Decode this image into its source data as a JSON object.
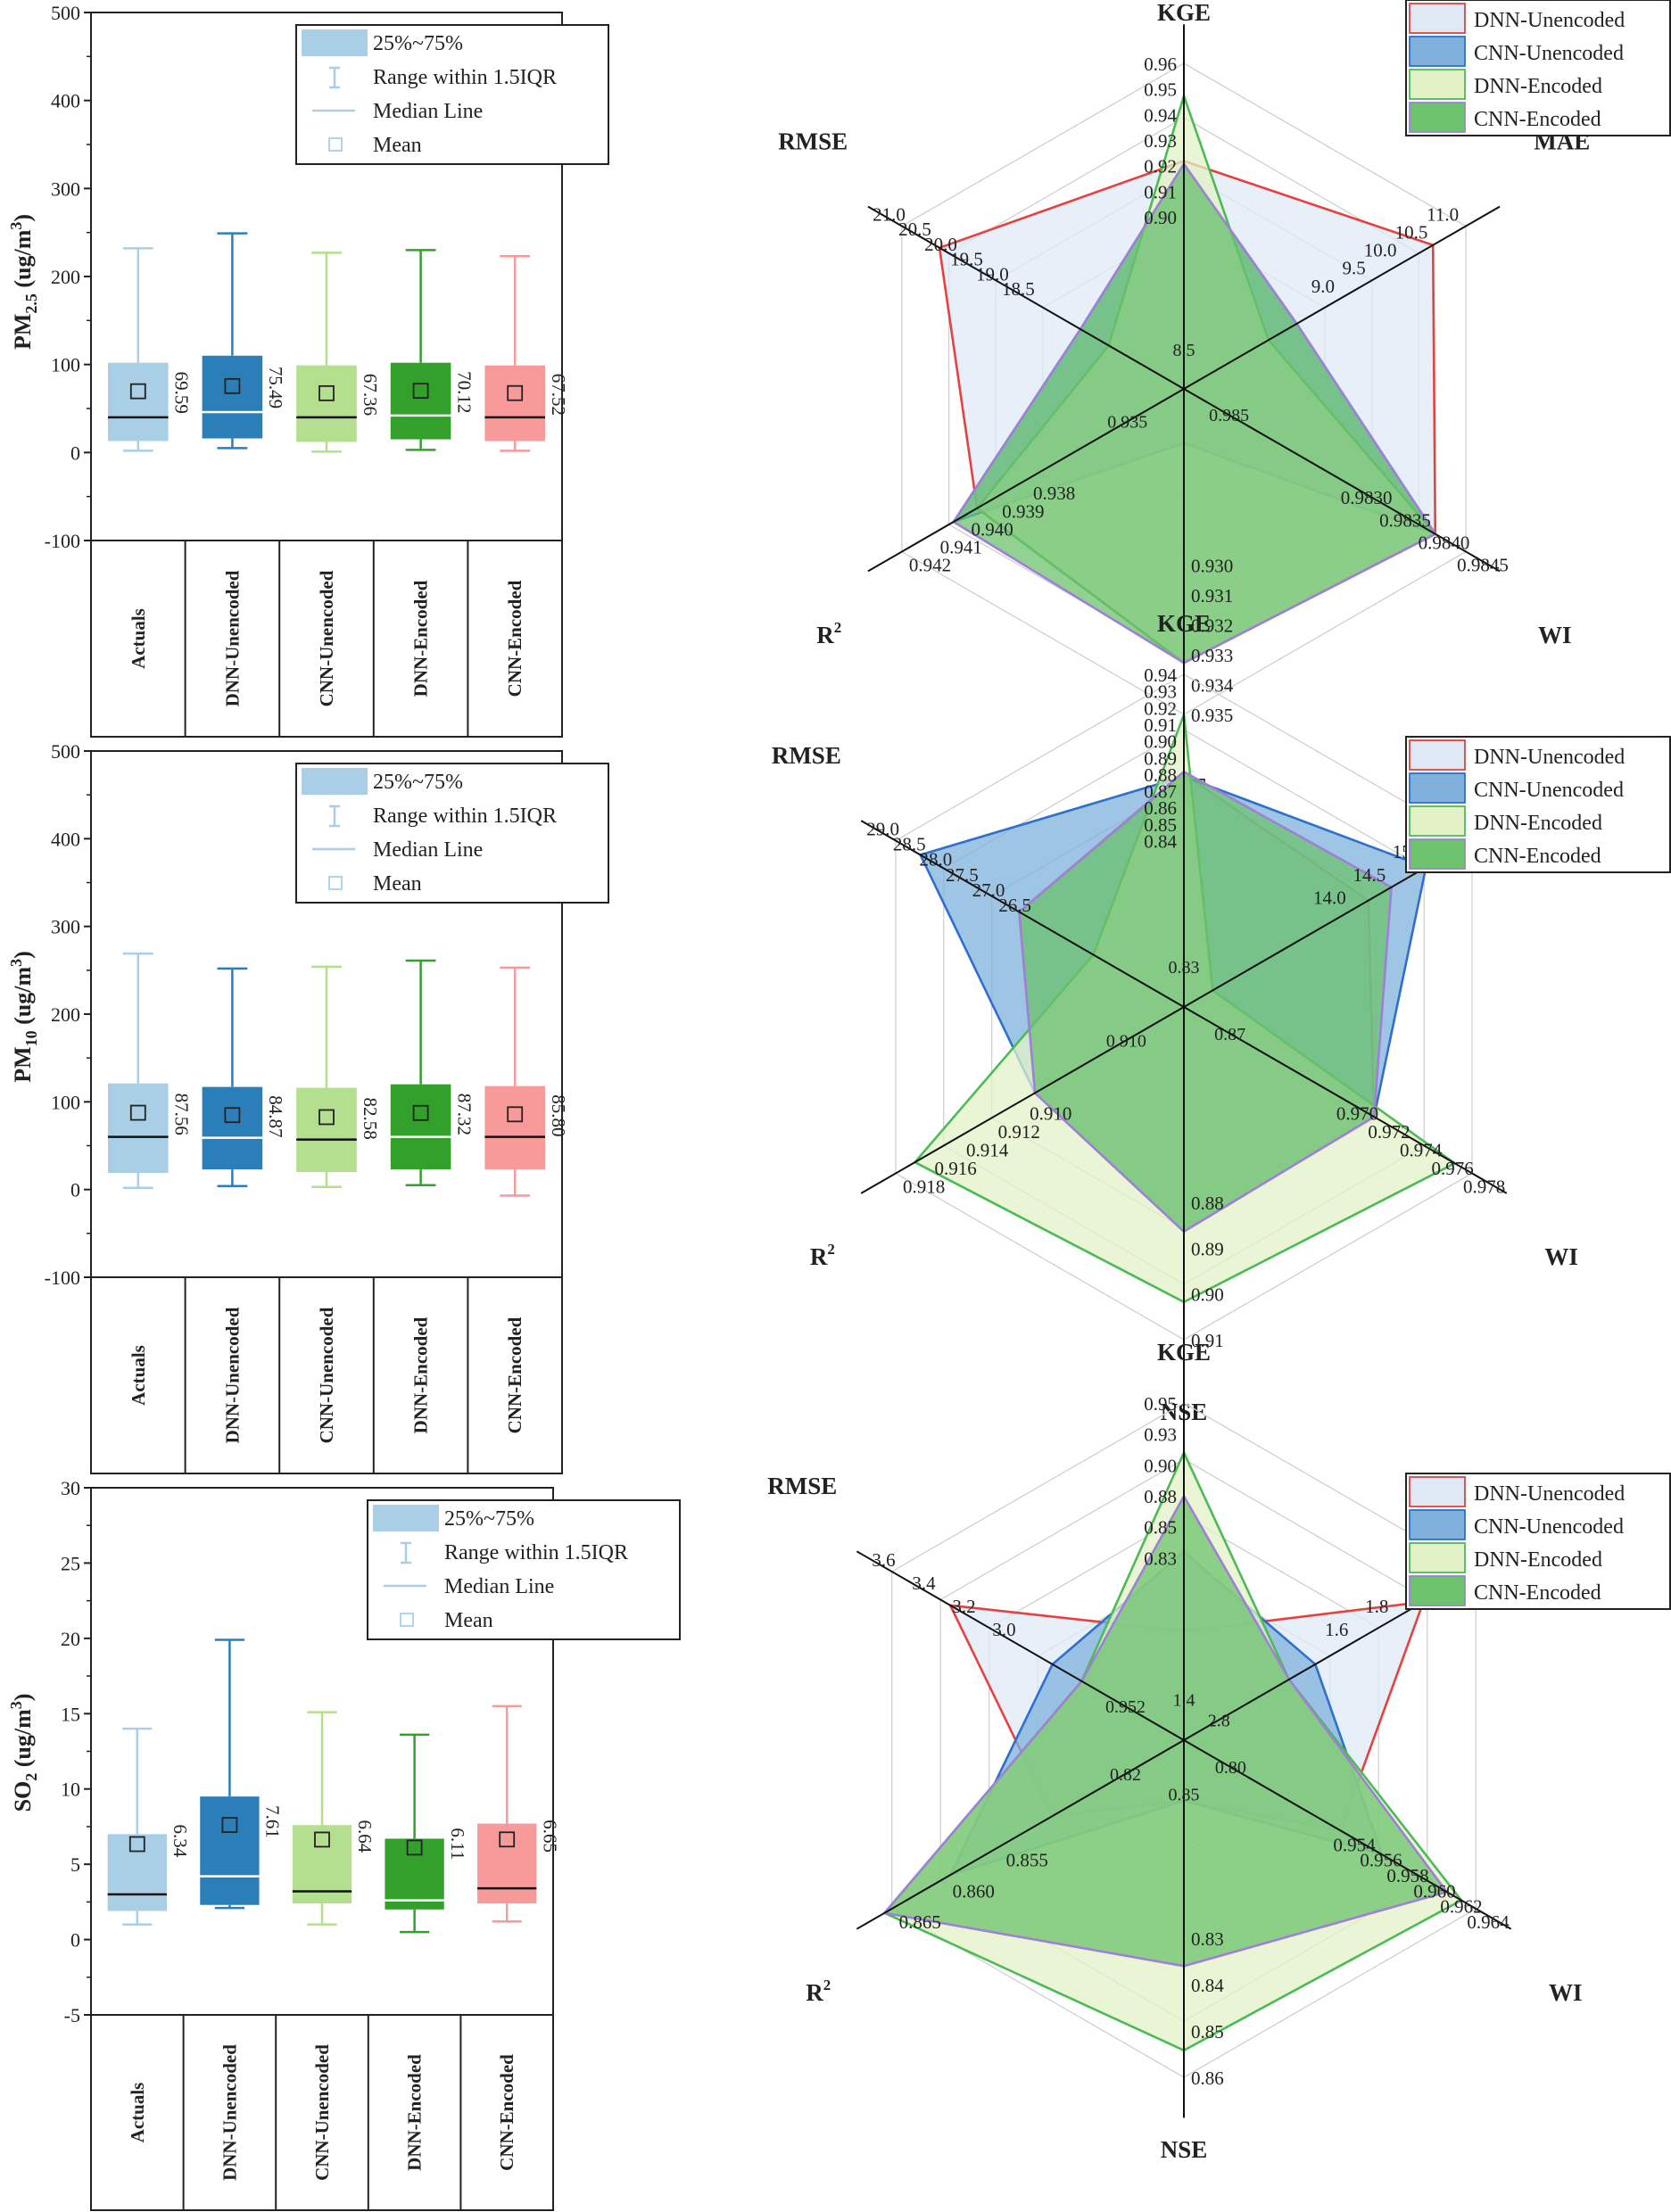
{
  "chart_data": [
    {
      "type": "box",
      "id": "pm25",
      "ylabel": "PM_{2.5} (ug/m^{3})",
      "ylabel_main": "PM",
      "ylabel_sub": "2.5",
      "ylabel_unit": " (ug/m",
      "ylabel_sup": "3",
      "ylabel_close": ")",
      "ylim": [
        -100,
        500
      ],
      "yticks": [
        -100,
        0,
        100,
        200,
        300,
        400,
        500
      ],
      "ytick_labels": [
        "-100",
        "0",
        "100",
        "200",
        "300",
        "400",
        "500"
      ],
      "legend": [
        "25%~75%",
        "Range within 1.5IQR",
        "Median Line",
        "Mean"
      ],
      "categories": [
        "Actuals",
        "DNN-Unencoded",
        "CNN-Unencoded",
        "DNN-Encoded",
        "CNN-Encoded"
      ],
      "boxes": [
        {
          "min": 2,
          "q1": 13,
          "median": 40,
          "q3": 102,
          "max": 232,
          "mean": 69.59,
          "mean_label": "69.59",
          "color": "#a9cfe6"
        },
        {
          "min": 5,
          "q1": 16,
          "median": 46,
          "q3": 110,
          "max": 249,
          "mean": 75.49,
          "mean_label": "75.49",
          "color": "#2b7fb8"
        },
        {
          "min": 1,
          "q1": 12,
          "median": 40,
          "q3": 99,
          "max": 227,
          "mean": 67.36,
          "mean_label": "67.36",
          "color": "#b3df8e"
        },
        {
          "min": 3,
          "q1": 15,
          "median": 42,
          "q3": 102,
          "max": 230,
          "mean": 70.12,
          "mean_label": "70.12",
          "color": "#33a02c"
        },
        {
          "min": 2,
          "q1": 13,
          "median": 40,
          "q3": 99,
          "max": 223,
          "mean": 67.52,
          "mean_label": "67.52",
          "color": "#f89a99"
        }
      ]
    },
    {
      "type": "box",
      "id": "pm10",
      "ylabel": "PM_{10} (ug/m^{3})",
      "ylabel_main": "PM",
      "ylabel_sub": "10",
      "ylabel_unit": " (ug/m",
      "ylabel_sup": "3",
      "ylabel_close": ")",
      "ylim": [
        -100,
        500
      ],
      "yticks": [
        -100,
        0,
        100,
        200,
        300,
        400,
        500
      ],
      "ytick_labels": [
        "-100",
        "0",
        "100",
        "200",
        "300",
        "400",
        "500"
      ],
      "legend": [
        "25%~75%",
        "Range within 1.5IQR",
        "Median Line",
        "Mean"
      ],
      "categories": [
        "Actuals",
        "DNN-Unencoded",
        "CNN-Unencoded",
        "DNN-Encoded",
        "CNN-Encoded"
      ],
      "boxes": [
        {
          "min": 2,
          "q1": 19,
          "median": 60,
          "q3": 121,
          "max": 269,
          "mean": 87.56,
          "mean_label": "87.56",
          "color": "#a9cfe6"
        },
        {
          "min": 4,
          "q1": 23,
          "median": 59,
          "q3": 117,
          "max": 252,
          "mean": 84.87,
          "mean_label": "84.87",
          "color": "#2b7fb8"
        },
        {
          "min": 3,
          "q1": 20,
          "median": 57,
          "q3": 116,
          "max": 254,
          "mean": 82.58,
          "mean_label": "82.58",
          "color": "#b3df8e"
        },
        {
          "min": 5,
          "q1": 23,
          "median": 60,
          "q3": 120,
          "max": 261,
          "mean": 87.32,
          "mean_label": "87.32",
          "color": "#33a02c"
        },
        {
          "min": -7,
          "q1": 23,
          "median": 60,
          "q3": 118,
          "max": 253,
          "mean": 85.8,
          "mean_label": "85.80",
          "color": "#f89a99"
        }
      ]
    },
    {
      "type": "box",
      "id": "so2",
      "ylabel": "SO_{2} (ug/m^{3})",
      "ylabel_main": "SO",
      "ylabel_sub": "2",
      "ylabel_unit": " (ug/m",
      "ylabel_sup": "3",
      "ylabel_close": ")",
      "ylim": [
        -5,
        30
      ],
      "yticks": [
        -5,
        0,
        5,
        10,
        15,
        20,
        25,
        30
      ],
      "ytick_labels": [
        "-5",
        "0",
        "5",
        "10",
        "15",
        "20",
        "25",
        "30"
      ],
      "legend": [
        "25%~75%",
        "Range within 1.5IQR",
        "Median Line",
        "Mean"
      ],
      "categories": [
        "Actuals",
        "DNN-Unencoded",
        "CNN-Unencoded",
        "DNN-Encoded",
        "CNN-Encoded"
      ],
      "boxes": [
        {
          "min": 1.0,
          "q1": 1.9,
          "median": 3.0,
          "q3": 7.0,
          "max": 14.0,
          "mean": 6.34,
          "mean_label": "6.34",
          "color": "#a9cfe6"
        },
        {
          "min": 2.1,
          "q1": 2.3,
          "median": 4.2,
          "q3": 9.5,
          "max": 19.9,
          "mean": 7.61,
          "mean_label": "7.61",
          "color": "#2b7fb8"
        },
        {
          "min": 1.0,
          "q1": 2.4,
          "median": 3.2,
          "q3": 7.6,
          "max": 15.1,
          "mean": 6.64,
          "mean_label": "6.64",
          "color": "#b3df8e"
        },
        {
          "min": 0.5,
          "q1": 2.0,
          "median": 2.6,
          "q3": 6.7,
          "max": 13.6,
          "mean": 6.11,
          "mean_label": "6.11",
          "color": "#33a02c"
        },
        {
          "min": 1.2,
          "q1": 2.4,
          "median": 3.4,
          "q3": 7.7,
          "max": 15.5,
          "mean": 6.65,
          "mean_label": "6.65",
          "color": "#f89a99"
        }
      ]
    },
    {
      "type": "radar",
      "id": "radar-pm25",
      "axes": [
        "KGE",
        "MAE",
        "WI",
        "NSE",
        "R2",
        "RMSE"
      ],
      "axis_titles": [
        {
          "text": "KGE",
          "sup": ""
        },
        {
          "text": "MAE",
          "sup": ""
        },
        {
          "text": "WI",
          "sup": ""
        },
        {
          "text": "NSE",
          "sup": ""
        },
        {
          "text": "R",
          "sup": "2"
        },
        {
          "text": "RMSE",
          "sup": ""
        }
      ],
      "ranges": [
        [
          0.85,
          0.96
        ],
        [
          8.0,
          11.0
        ],
        [
          0.981,
          0.9845
        ],
        [
          0.929,
          0.935
        ],
        [
          0.936,
          0.942
        ],
        [
          18.0,
          21.0
        ]
      ],
      "tick_labels": [
        [
          "0.90",
          "0.91",
          "0.92",
          "0.93",
          "0.94",
          "0.95",
          "0.96"
        ],
        [
          "9.0",
          "9.5",
          "10.0",
          "10.5",
          "11.0"
        ],
        [
          "0.9830",
          "0.9835",
          "0.9840",
          "0.9845"
        ],
        [
          "0.930",
          "0.931",
          "0.932",
          "0.933",
          "0.934",
          "0.935"
        ],
        [
          "0.938",
          "0.939",
          "0.940",
          "0.941",
          "0.942"
        ],
        [
          "18.5",
          "19.0",
          "19.5",
          "20.0",
          "20.5",
          "21.0"
        ]
      ],
      "inner_labels": [
        "8.5",
        "0.985",
        "0.935"
      ],
      "legend": [
        "DNN-Unencoded",
        "CNN-Unencoded",
        "DNN-Encoded",
        "CNN-Encoded"
      ],
      "series": [
        {
          "name": "DNN-Unencoded",
          "values": [
            0.927,
            10.65,
            0.98412,
            0.93405,
            0.9404,
            20.6
          ],
          "fill": "#dfe9f6",
          "stroke": "#e8403f"
        },
        {
          "name": "CNN-Unencoded",
          "values": [
            0.926,
            9.2,
            0.98412,
            0.93,
            0.9409,
            19.1
          ],
          "fill": "#7fb1dc",
          "stroke": "#2f6fcd"
        },
        {
          "name": "DNN-Encoded",
          "values": [
            0.949,
            8.9,
            0.98412,
            0.93405,
            0.9404,
            18.8
          ],
          "fill": "#e2f1c6",
          "stroke": "#4cbb55"
        },
        {
          "name": "CNN-Encoded",
          "values": [
            0.926,
            9.2,
            0.98412,
            0.93405,
            0.9409,
            19.1
          ],
          "fill": "#6cc26d",
          "stroke": "#a07fd8"
        }
      ]
    },
    {
      "type": "radar",
      "id": "radar-pm10",
      "axes": [
        "KGE",
        "MAE",
        "WI",
        "NSE",
        "R2",
        "RMSE"
      ],
      "axis_titles": [
        {
          "text": "KGE",
          "sup": ""
        },
        {
          "text": "MAE",
          "sup": ""
        },
        {
          "text": "WI",
          "sup": ""
        },
        {
          "text": "NSE",
          "sup": ""
        },
        {
          "text": "R",
          "sup": "2"
        },
        {
          "text": "RMSE",
          "sup": ""
        }
      ],
      "ranges": [
        [
          0.8,
          0.94
        ],
        [
          13.0,
          15.5
        ],
        [
          0.968,
          0.978
        ],
        [
          0.85,
          0.91
        ],
        [
          0.906,
          0.918
        ],
        [
          25.5,
          29.0
        ]
      ],
      "tick_labels": [
        [
          "0.84",
          "0.85",
          "0.86",
          "0.87",
          "0.88",
          "0.89",
          "0.90",
          "0.91",
          "0.92",
          "0.93",
          "0.94"
        ],
        [
          "14.0",
          "14.5",
          "15.0",
          "15.5"
        ],
        [
          "0.970",
          "0.972",
          "0.974",
          "0.976",
          "0.978"
        ],
        [
          "0.88",
          "0.89",
          "0.90",
          "0.91"
        ],
        [
          "0.910",
          "0.912",
          "0.914",
          "0.916",
          "0.918"
        ],
        [
          "26.5",
          "27.0",
          "27.5",
          "28.0",
          "28.5",
          "29.0"
        ]
      ],
      "inner_labels": [
        "0.83",
        "0.87",
        "0.910"
      ],
      "legend": [
        "DNN-Unencoded",
        "CNN-Unencoded",
        "DNN-Encoded",
        "CNN-Encoded"
      ],
      "series": [
        {
          "name": "DNN-Unencoded",
          "values": [
            0.898,
            14.6,
            0.9746,
            0.8905,
            0.9122,
            27.5
          ],
          "fill": "#dfe9f6",
          "stroke": "#e8403f"
        },
        {
          "name": "CNN-Unencoded",
          "values": [
            0.897,
            15.1,
            0.9746,
            0.8905,
            0.9122,
            28.7
          ],
          "fill": "#7fb1dc",
          "stroke": "#2f6fcd"
        },
        {
          "name": "DNN-Encoded",
          "values": [
            0.923,
            13.25,
            0.9774,
            0.9032,
            0.9172,
            26.6
          ],
          "fill": "#e2f1c6",
          "stroke": "#4cbb55"
        },
        {
          "name": "CNN-Encoded",
          "values": [
            0.899,
            14.8,
            0.9746,
            0.8905,
            0.9122,
            27.5
          ],
          "fill": "#6cc26d",
          "stroke": "#a07fd8"
        }
      ]
    },
    {
      "type": "radar",
      "id": "radar-so2",
      "axes": [
        "KGE",
        "MAE",
        "WI",
        "NSE",
        "R2",
        "RMSE"
      ],
      "axis_titles": [
        {
          "text": "KGE",
          "sup": ""
        },
        {
          "text": "MAE",
          "sup": ""
        },
        {
          "text": "WI",
          "sup": ""
        },
        {
          "text": "NSE",
          "sup": ""
        },
        {
          "text": "R",
          "sup": "2"
        },
        {
          "text": "RMSE",
          "sup": ""
        }
      ],
      "ranges": [
        [
          0.78,
          0.95
        ],
        [
          1.2,
          2.2
        ],
        [
          0.95,
          0.964
        ],
        [
          0.81,
          0.86
        ],
        [
          0.845,
          0.865
        ],
        [
          2.6,
          3.6
        ]
      ],
      "tick_labels": [
        [
          "0.83",
          "0.85",
          "0.88",
          "0.90",
          "0.93",
          "0.95"
        ],
        [
          "1.6",
          "1.8",
          "2.0",
          "2.2"
        ],
        [
          "0.954",
          "0.956",
          "0.958",
          "0.960",
          "0.962",
          "0.964"
        ],
        [
          "0.83",
          "0.84",
          "0.85",
          "0.86"
        ],
        [
          "0.855",
          "0.860",
          "0.865"
        ],
        [
          "3.0",
          "3.2",
          "3.4",
          "3.6"
        ]
      ],
      "inner_labels": [
        "1.4",
        "0.80",
        "0.82",
        "2.8",
        "0.85",
        "0.952"
      ],
      "legend": [
        "DNN-Unencoded",
        "CNN-Unencoded",
        "DNN-Encoded",
        "CNN-Encoded"
      ],
      "series": [
        {
          "name": "DNN-Unencoded",
          "values": [
            0.835,
            2.02,
            0.9575,
            0.819,
            0.854,
            3.4
          ],
          "fill": "#dfe9f6",
          "stroke": "#e8403f"
        },
        {
          "name": "CNN-Unencoded",
          "values": [
            0.875,
            1.65,
            0.9595,
            0.819,
            0.861,
            3.05
          ],
          "fill": "#7fb1dc",
          "stroke": "#2f6fcd"
        },
        {
          "name": "DNN-Encoded",
          "values": [
            0.925,
            1.56,
            0.9633,
            0.856,
            0.8655,
            2.95
          ],
          "fill": "#e2f1c6",
          "stroke": "#4cbb55"
        },
        {
          "name": "CNN-Encoded",
          "values": [
            0.903,
            1.56,
            0.9626,
            0.8435,
            0.8655,
            2.95
          ],
          "fill": "#6cc26d",
          "stroke": "#a07fd8"
        }
      ]
    }
  ]
}
